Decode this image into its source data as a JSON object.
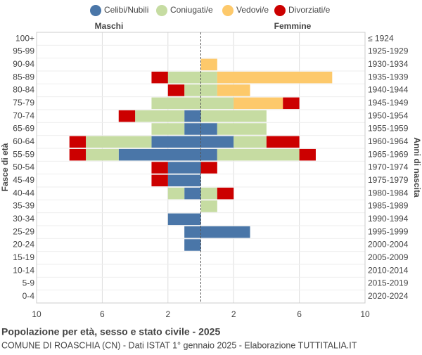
{
  "chart_data": {
    "type": "pyramid",
    "title": "Popolazione per età, sesso e stato civile - 2025",
    "subtitle": "COMUNE DI ROASCHIA (CN) - Dati ISTAT 1° gennaio 2025 - Elaborazione TUTTITALIA.IT",
    "left_label": "Maschi",
    "right_label": "Femmine",
    "ylabel": "Fasce di età",
    "y2label": "Anni di nascita",
    "categories": [
      "100+",
      "95-99",
      "90-94",
      "85-89",
      "80-84",
      "75-79",
      "70-74",
      "65-69",
      "60-64",
      "55-59",
      "50-54",
      "45-49",
      "40-44",
      "35-39",
      "30-34",
      "25-29",
      "20-24",
      "15-19",
      "10-14",
      "5-9",
      "0-4"
    ],
    "birth_years": [
      "≤ 1924",
      "1925-1929",
      "1930-1934",
      "1935-1939",
      "1940-1944",
      "1945-1949",
      "1950-1954",
      "1955-1959",
      "1960-1964",
      "1965-1969",
      "1970-1974",
      "1975-1979",
      "1980-1984",
      "1985-1989",
      "1990-1994",
      "1995-1999",
      "2000-2004",
      "2005-2009",
      "2010-2014",
      "2015-2019",
      "2020-2024"
    ],
    "series": [
      {
        "name": "Celibi/Nubili",
        "color": "#4a76a8",
        "male": [
          0,
          0,
          0,
          0,
          0,
          0,
          1,
          1,
          3,
          5,
          2,
          2,
          1,
          0,
          2,
          1,
          1,
          0,
          0,
          0,
          0
        ],
        "female": [
          0,
          0,
          0,
          0,
          0,
          0,
          0,
          1,
          2,
          1,
          0,
          0,
          0,
          0,
          0,
          3,
          0,
          0,
          0,
          0,
          0
        ]
      },
      {
        "name": "Coniugati/e",
        "color": "#c6dca2",
        "male": [
          0,
          0,
          0,
          2,
          1,
          3,
          3,
          2,
          4,
          2,
          0,
          0,
          1,
          0,
          0,
          0,
          0,
          0,
          0,
          0,
          0
        ],
        "female": [
          0,
          0,
          0,
          1,
          1,
          2,
          4,
          3,
          2,
          5,
          0,
          0,
          1,
          1,
          0,
          0,
          0,
          0,
          0,
          0,
          0
        ]
      },
      {
        "name": "Vedovi/e",
        "color": "#fdc96b",
        "male": [
          0,
          0,
          0,
          0,
          0,
          0,
          0,
          0,
          0,
          0,
          0,
          0,
          0,
          0,
          0,
          0,
          0,
          0,
          0,
          0,
          0
        ],
        "female": [
          0,
          0,
          1,
          7,
          2,
          3,
          0,
          0,
          0,
          0,
          0,
          0,
          0,
          0,
          0,
          0,
          0,
          0,
          0,
          0,
          0
        ]
      },
      {
        "name": "Divorziati/e",
        "color": "#cc0000",
        "male": [
          0,
          0,
          0,
          1,
          1,
          0,
          1,
          0,
          1,
          1,
          1,
          1,
          0,
          0,
          0,
          0,
          0,
          0,
          0,
          0,
          0
        ],
        "female": [
          0,
          0,
          0,
          0,
          0,
          1,
          0,
          0,
          2,
          1,
          1,
          0,
          1,
          0,
          0,
          0,
          0,
          0,
          0,
          0,
          0
        ]
      }
    ],
    "xlim": [
      -10,
      10
    ],
    "xticks": [
      {
        "value": -10,
        "label": "10"
      },
      {
        "value": -6,
        "label": "6"
      },
      {
        "value": -2,
        "label": "2"
      },
      2,
      6,
      10
    ],
    "grid": true
  }
}
